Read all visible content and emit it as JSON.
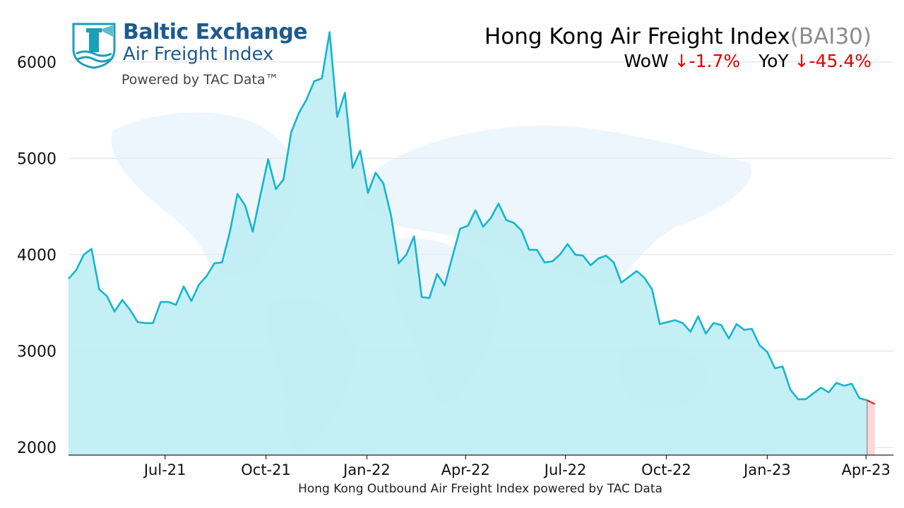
{
  "logo": {
    "line1": "Baltic Exchange",
    "line2": "Air Freight Index",
    "line3": "Powered by TAC Data™"
  },
  "header": {
    "title": "Hong Kong Air Freight Index",
    "code": "(BAI30)",
    "wow_label": "WoW",
    "wow_value": "↓-1.7%",
    "yoy_label": "YoY",
    "yoy_value": "↓-45.4%"
  },
  "footer": "Hong Kong Outbound Air Freight Index powered by TAC Data",
  "colors": {
    "line": "#15b5cf",
    "fill": "#bfeef3",
    "down": "#e8302c",
    "down_fill": "#ffd6d9",
    "grid": "#dddddd"
  },
  "chart_data": {
    "type": "area",
    "title": "Hong Kong Air Freight Index",
    "xlabel": "Hong Kong Outbound Air Freight Index powered by TAC Data",
    "ylabel": "",
    "ylim": [
      1920,
      6350
    ],
    "yticks": [
      2000,
      3000,
      4000,
      5000,
      6000
    ],
    "xlim": [
      "2021-04-04",
      "2023-04-26"
    ],
    "xticks": [
      {
        "date": "2021-07-01",
        "label": "Jul-21"
      },
      {
        "date": "2021-10-01",
        "label": "Oct-21"
      },
      {
        "date": "2022-01-01",
        "label": "Jan-22"
      },
      {
        "date": "2022-04-01",
        "label": "Apr-22"
      },
      {
        "date": "2022-07-01",
        "label": "Jul-22"
      },
      {
        "date": "2022-10-01",
        "label": "Oct-22"
      },
      {
        "date": "2023-01-01",
        "label": "Jan-23"
      },
      {
        "date": "2023-04-01",
        "label": "Apr-23"
      }
    ],
    "grid": true,
    "start_date": "2021-04-04",
    "interval_days": 7,
    "values": [
      3750,
      3840,
      4000,
      4060,
      3640,
      3570,
      3410,
      3530,
      3430,
      3300,
      3290,
      3290,
      3510,
      3510,
      3480,
      3670,
      3520,
      3690,
      3780,
      3910,
      3920,
      4230,
      4630,
      4510,
      4240,
      4620,
      4990,
      4680,
      4780,
      5270,
      5470,
      5610,
      5800,
      5830,
      6310,
      5430,
      5680,
      4900,
      5080,
      4640,
      4850,
      4740,
      4410,
      3910,
      4000,
      4190,
      3560,
      3550,
      3800,
      3680,
      3980,
      4270,
      4300,
      4460,
      4290,
      4380,
      4530,
      4360,
      4330,
      4250,
      4050,
      4050,
      3920,
      3930,
      4000,
      4110,
      4000,
      3990,
      3890,
      3960,
      3990,
      3920,
      3710,
      3770,
      3830,
      3760,
      3640,
      3280,
      3300,
      3320,
      3290,
      3200,
      3360,
      3180,
      3290,
      3270,
      3130,
      3280,
      3220,
      3230,
      3060,
      2990,
      2820,
      2840,
      2600,
      2500,
      2500,
      2560,
      2620,
      2570,
      2670,
      2640,
      2660,
      2510,
      2490
    ],
    "last_value": 2450,
    "series": [
      {
        "name": "",
        "description": "main index line"
      }
    ]
  }
}
